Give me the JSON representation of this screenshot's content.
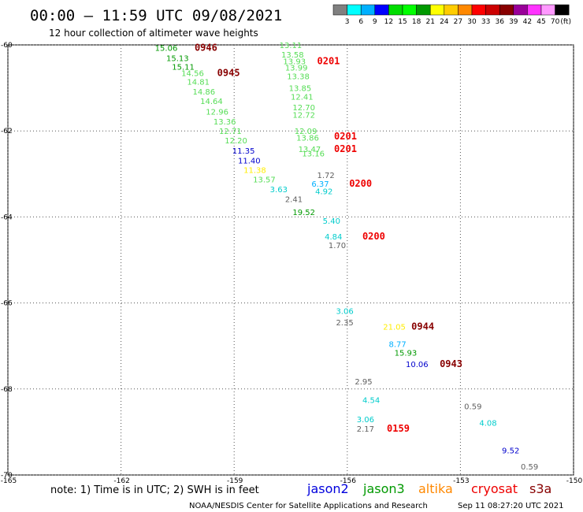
{
  "header": {
    "title": "00:00 – 11:59 UTC 09/08/2021",
    "subtitle": "12 hour collection of altimeter wave heights"
  },
  "legend": {
    "colors": [
      "#808080",
      "#00ffff",
      "#00b0ff",
      "#0000ff",
      "#00dd00",
      "#00ff00",
      "#009900",
      "#ffff00",
      "#ffcc00",
      "#ff8800",
      "#ff0000",
      "#cc0000",
      "#880000",
      "#990099",
      "#ff33ff",
      "#ff99ff",
      "#000000"
    ],
    "labels": [
      "3",
      "6",
      "9",
      "12",
      "15",
      "18",
      "21",
      "24",
      "27",
      "30",
      "33",
      "36",
      "39",
      "42",
      "45",
      "70"
    ],
    "unit": "(ft)"
  },
  "axes": {
    "lat_ticks": [
      "-60",
      "-62",
      "-64",
      "-66",
      "-68",
      "-70"
    ],
    "lon_ticks": [
      "-165",
      "-162",
      "-159",
      "-156",
      "-153",
      "-150"
    ]
  },
  "footer": {
    "note": "note: 1) Time is in UTC; 2) SWH is in feet",
    "satellites": [
      {
        "name": "jason2",
        "color": "#0000dd"
      },
      {
        "name": "jason3",
        "color": "#009900"
      },
      {
        "name": "altika",
        "color": "#ff8800"
      },
      {
        "name": "cryosat",
        "color": "#ee0000"
      },
      {
        "name": "s3a",
        "color": "#880000"
      }
    ],
    "credit": "NOAA/NESDIS Center for Satellite Applications and Research",
    "timestamp": "Sep 11 08:27:20 UTC 2021"
  },
  "labels": [
    {
      "t": "15.06",
      "lon": -161.1,
      "lat": -60.06,
      "c": "#009900"
    },
    {
      "t": "0946",
      "lon": -160.05,
      "lat": -60.06,
      "c": "#880000",
      "big": true
    },
    {
      "t": "15.13",
      "lon": -160.8,
      "lat": -60.3,
      "c": "#009900"
    },
    {
      "t": "15.11",
      "lon": -160.65,
      "lat": -60.5,
      "c": "#009900"
    },
    {
      "t": "0945",
      "lon": -159.45,
      "lat": -60.65,
      "c": "#880000",
      "big": true
    },
    {
      "t": "14.56",
      "lon": -160.4,
      "lat": -60.65,
      "c": "#55dd55"
    },
    {
      "t": "14.81",
      "lon": -160.25,
      "lat": -60.85,
      "c": "#55dd55"
    },
    {
      "t": "14.86",
      "lon": -160.1,
      "lat": -61.08,
      "c": "#55dd55"
    },
    {
      "t": "14.64",
      "lon": -159.9,
      "lat": -61.3,
      "c": "#55dd55"
    },
    {
      "t": "12.96",
      "lon": -159.75,
      "lat": -61.55,
      "c": "#55dd55"
    },
    {
      "t": "13.36",
      "lon": -159.55,
      "lat": -61.78,
      "c": "#55dd55"
    },
    {
      "t": "12.71",
      "lon": -159.4,
      "lat": -62.0,
      "c": "#55dd55"
    },
    {
      "t": "12.20",
      "lon": -159.25,
      "lat": -62.22,
      "c": "#55dd55"
    },
    {
      "t": "11.35",
      "lon": -159.05,
      "lat": -62.45,
      "c": "#0000cc"
    },
    {
      "t": "11.40",
      "lon": -158.9,
      "lat": -62.68,
      "c": "#0000cc"
    },
    {
      "t": "11.38",
      "lon": -158.75,
      "lat": -62.9,
      "c": "#ffee00"
    },
    {
      "t": "13.57",
      "lon": -158.5,
      "lat": -63.12,
      "c": "#55dd55"
    },
    {
      "t": "3.63",
      "lon": -158.05,
      "lat": -63.35,
      "c": "#00cccc"
    },
    {
      "t": "2.41",
      "lon": -157.65,
      "lat": -63.58,
      "c": "#606060"
    },
    {
      "t": "19.52",
      "lon": -157.45,
      "lat": -63.88,
      "c": "#009900"
    },
    {
      "t": "13.11",
      "lon": -157.8,
      "lat": -60.0,
      "c": "#55dd55"
    },
    {
      "t": "13.58",
      "lon": -157.75,
      "lat": -60.22,
      "c": "#55dd55"
    },
    {
      "t": "13.93",
      "lon": -157.7,
      "lat": -60.38,
      "c": "#55dd55"
    },
    {
      "t": "13.99",
      "lon": -157.65,
      "lat": -60.52,
      "c": "#55dd55"
    },
    {
      "t": "0201",
      "lon": -156.8,
      "lat": -60.38,
      "c": "#ee0000",
      "big": true
    },
    {
      "t": "13.38",
      "lon": -157.6,
      "lat": -60.72,
      "c": "#55dd55"
    },
    {
      "t": "13.85",
      "lon": -157.55,
      "lat": -61.0,
      "c": "#55dd55"
    },
    {
      "t": "12.41",
      "lon": -157.5,
      "lat": -61.2,
      "c": "#55dd55"
    },
    {
      "t": "12.70",
      "lon": -157.45,
      "lat": -61.45,
      "c": "#55dd55"
    },
    {
      "t": "12.72",
      "lon": -157.45,
      "lat": -61.62,
      "c": "#55dd55"
    },
    {
      "t": "12.09",
      "lon": -157.4,
      "lat": -62.0,
      "c": "#55dd55"
    },
    {
      "t": "13.86",
      "lon": -157.35,
      "lat": -62.15,
      "c": "#55dd55"
    },
    {
      "t": "0201",
      "lon": -156.35,
      "lat": -62.12,
      "c": "#ee0000",
      "big": true
    },
    {
      "t": "13.47",
      "lon": -157.3,
      "lat": -62.42,
      "c": "#55dd55"
    },
    {
      "t": "13.16",
      "lon": -157.2,
      "lat": -62.52,
      "c": "#55dd55"
    },
    {
      "t": "0201",
      "lon": -156.35,
      "lat": -62.42,
      "c": "#ee0000",
      "big": true
    },
    {
      "t": "1.72",
      "lon": -156.8,
      "lat": -63.02,
      "c": "#606060"
    },
    {
      "t": "6.37",
      "lon": -156.95,
      "lat": -63.22,
      "c": "#00b0ff"
    },
    {
      "t": "0200",
      "lon": -155.95,
      "lat": -63.22,
      "c": "#ee0000",
      "big": true
    },
    {
      "t": "4.92",
      "lon": -156.85,
      "lat": -63.4,
      "c": "#00cccc"
    },
    {
      "t": "5.40",
      "lon": -156.65,
      "lat": -64.08,
      "c": "#00cccc"
    },
    {
      "t": "4.84",
      "lon": -156.6,
      "lat": -64.45,
      "c": "#00cccc"
    },
    {
      "t": "0200",
      "lon": -155.6,
      "lat": -64.45,
      "c": "#ee0000",
      "big": true
    },
    {
      "t": "1.70",
      "lon": -156.5,
      "lat": -64.65,
      "c": "#606060"
    },
    {
      "t": "3.06",
      "lon": -156.3,
      "lat": -66.18,
      "c": "#00cccc"
    },
    {
      "t": "2.35",
      "lon": -156.3,
      "lat": -66.45,
      "c": "#606060"
    },
    {
      "t": "21.05",
      "lon": -155.05,
      "lat": -66.55,
      "c": "#ffee00"
    },
    {
      "t": "0944",
      "lon": -154.3,
      "lat": -66.55,
      "c": "#880000",
      "big": true
    },
    {
      "t": "8.77",
      "lon": -154.9,
      "lat": -66.95,
      "c": "#00b0ff"
    },
    {
      "t": "15.93",
      "lon": -154.75,
      "lat": -67.15,
      "c": "#009900"
    },
    {
      "t": "10.06",
      "lon": -154.45,
      "lat": -67.42,
      "c": "#0000cc"
    },
    {
      "t": "0943",
      "lon": -153.55,
      "lat": -67.42,
      "c": "#880000",
      "big": true
    },
    {
      "t": "2.95",
      "lon": -155.8,
      "lat": -67.82,
      "c": "#606060"
    },
    {
      "t": "4.54",
      "lon": -155.6,
      "lat": -68.25,
      "c": "#00cccc"
    },
    {
      "t": "0.59",
      "lon": -152.9,
      "lat": -68.4,
      "c": "#606060"
    },
    {
      "t": "3.06",
      "lon": -155.75,
      "lat": -68.7,
      "c": "#00cccc"
    },
    {
      "t": "4.08",
      "lon": -152.5,
      "lat": -68.78,
      "c": "#00cccc"
    },
    {
      "t": "2.17",
      "lon": -155.75,
      "lat": -68.92,
      "c": "#606060"
    },
    {
      "t": "0159",
      "lon": -154.95,
      "lat": -68.92,
      "c": "#ee0000",
      "big": true
    },
    {
      "t": "9.52",
      "lon": -151.9,
      "lat": -69.42,
      "c": "#0000cc"
    },
    {
      "t": "0.59",
      "lon": -151.4,
      "lat": -69.8,
      "c": "#606060"
    }
  ]
}
